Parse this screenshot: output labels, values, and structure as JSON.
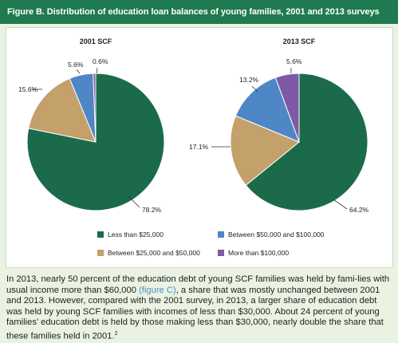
{
  "header": {
    "title": "Figure B. Distribution of education loan balances of young families, 2001 and 2013 surveys"
  },
  "chart_data": [
    {
      "type": "pie",
      "title": "2001 SCF",
      "categories": [
        "Less than $25,000",
        "Between $25,000 and $50,000",
        "Between $50,000 and $100,000",
        "More than $100,000"
      ],
      "values": [
        78.2,
        15.6,
        5.6,
        0.6
      ],
      "labels": [
        "78.2%",
        "15.6%",
        "5.6%",
        "0.6%"
      ],
      "colors": [
        "#1b6b4a",
        "#c4a06a",
        "#4f86c6",
        "#7e5aa6"
      ]
    },
    {
      "type": "pie",
      "title": "2013 SCF",
      "categories": [
        "Less than $25,000",
        "Between $25,000 and $50,000",
        "Between $50,000 and $100,000",
        "More than $100,000"
      ],
      "values": [
        64.2,
        17.1,
        13.2,
        5.6
      ],
      "labels": [
        "64.2%",
        "17.1%",
        "13.2%",
        "5.6%"
      ],
      "colors": [
        "#1b6b4a",
        "#c4a06a",
        "#4f86c6",
        "#7e5aa6"
      ]
    }
  ],
  "legend": {
    "items": [
      {
        "label": "Less than $25,000",
        "color": "#1b6b4a"
      },
      {
        "label": "Between $50,000 and $100,000",
        "color": "#4f86c6"
      },
      {
        "label": "Between $25,000 and $50,000",
        "color": "#c4a06a"
      },
      {
        "label": "More than $100,000",
        "color": "#7e5aa6"
      }
    ]
  },
  "caption": {
    "part1": "In 2013, nearly 50 percent of the education debt of young SCF families was held by fami-lies with usual income more than $60,000 ",
    "ref": "(figure C)",
    "part2": ", a share that was mostly unchanged between 2001 and 2013. However, compared with the 2001 survey, in 2013, a larger share of education debt was held by young SCF families with incomes of less than $30,000. About 24 percent of young families’ education debt is held by those making less than $30,000, nearly double the share that these families held in 2001.",
    "footnote": "2"
  }
}
